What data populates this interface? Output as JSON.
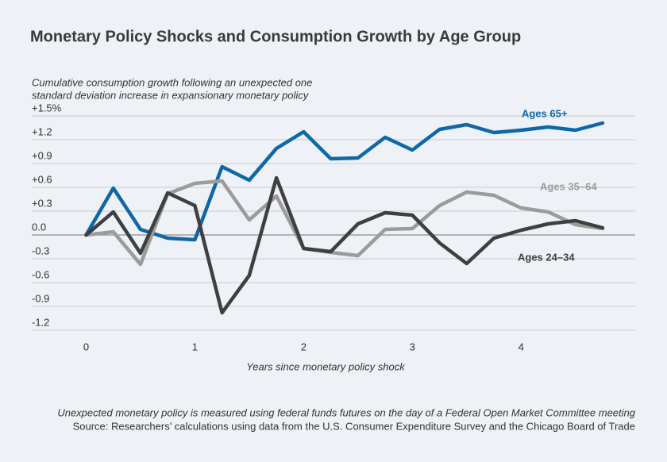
{
  "chart_data": {
    "type": "line",
    "title": "Monetary Policy Shocks and Consumption Growth by Age Group",
    "subtitle": [
      "Cumulative consumption growth following an unexpected one",
      "standard deviation increase in expansionary monetary policy"
    ],
    "xlabel": "Years since monetary policy shock",
    "notes": [
      "Unexpected monetary policy is measured using federal funds futures on the day of a Federal Open Market Committee meeting",
      "Source: Researchers’ calculations using data from the U.S. Consumer Expenditure Survey and the Chicago Board of Trade"
    ],
    "x": [
      0,
      0.25,
      0.5,
      0.75,
      1,
      1.25,
      1.5,
      1.75,
      2,
      2.25,
      2.5,
      2.75,
      3,
      3.25,
      3.5,
      3.75,
      4,
      4.25,
      4.5,
      4.75
    ],
    "xlim": [
      -0.5,
      5.05
    ],
    "xticks": [
      0,
      1,
      2,
      3,
      4
    ],
    "ylim": [
      -1.2,
      1.5
    ],
    "yticks": [
      {
        "value": 1.5,
        "label": "+1.5%"
      },
      {
        "value": 1.2,
        "label": "+1.2"
      },
      {
        "value": 0.9,
        "label": "+0.9"
      },
      {
        "value": 0.6,
        "label": "+0.6"
      },
      {
        "value": 0.3,
        "label": "+0.3"
      },
      {
        "value": 0,
        "label": "0.0"
      },
      {
        "value": -0.3,
        "label": "-0.3"
      },
      {
        "value": -0.6,
        "label": "-0.6"
      },
      {
        "value": -0.9,
        "label": "-0.9"
      },
      {
        "value": -1.2,
        "label": "-1.2"
      }
    ],
    "grid": true,
    "series": [
      {
        "name": "Ages 65+",
        "color": "#0f68a6",
        "values": [
          0,
          0.59,
          0.07,
          -0.04,
          -0.06,
          0.86,
          0.69,
          1.09,
          1.3,
          0.96,
          0.97,
          1.23,
          1.07,
          1.33,
          1.39,
          1.29,
          1.32,
          1.36,
          1.32,
          1.41
        ]
      },
      {
        "name": "Ages 35–64",
        "color": "#9b9b9b",
        "values": [
          0,
          0.04,
          -0.37,
          0.52,
          0.65,
          0.68,
          0.19,
          0.49,
          -0.17,
          -0.22,
          -0.26,
          0.07,
          0.08,
          0.37,
          0.54,
          0.5,
          0.34,
          0.29,
          0.13,
          0.08
        ]
      },
      {
        "name": "Ages 24–34",
        "color": "#3f3f41",
        "values": [
          0,
          0.29,
          -0.23,
          0.53,
          0.37,
          -0.98,
          -0.51,
          0.72,
          -0.17,
          -0.21,
          0.14,
          0.28,
          0.25,
          -0.1,
          -0.36,
          -0.04,
          0.06,
          0.14,
          0.18,
          0.09
        ]
      }
    ]
  }
}
